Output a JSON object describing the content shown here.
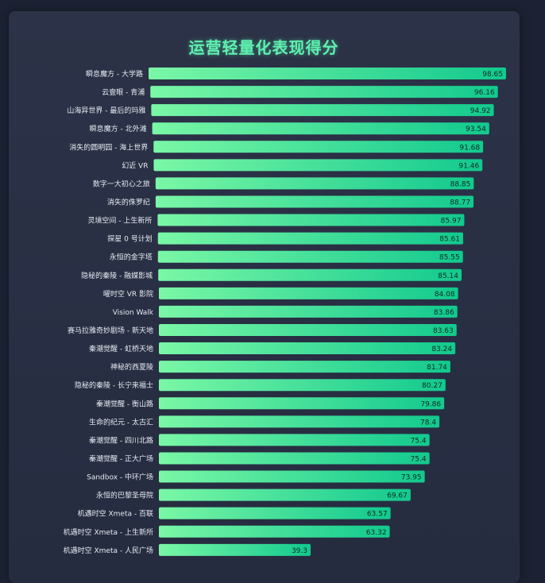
{
  "chart_data": {
    "type": "bar",
    "orientation": "horizontal",
    "title": "运营轻量化表现得分",
    "categories": [
      "瞬息魔方 - 大学路",
      "云壹眼 - 青浦",
      "山海异世界 - 最后的玛雅",
      "瞬息魔方 - 北外滩",
      "消失的圆明园 - 海上世界",
      "幻近 VR",
      "数字一大初心之旅",
      "消失的侏罗纪",
      "灵境空间 - 上生新所",
      "探星 0 号计划",
      "永恒的金字塔",
      "隐秘的秦陵 - 融媒影城",
      "曜时空 VR 影院",
      "Vision Walk",
      "赛马拉雅奇妙剧场 - 新天地",
      "秦潮觉醒 - 虹桥天地",
      "神秘的西夏陵",
      "隐秘的秦陵 - 长宁来福士",
      "秦潮觉醒 - 衡山路",
      "生命的纪元 - 太古汇",
      "秦潮觉醒 - 四川北路",
      "秦潮觉醒 - 正大广场",
      "Sandbox - 中环广场",
      "永恒的巴黎圣母院",
      "机遇时空 Xmeta - 百联",
      "机遇时空 Xmeta - 上生新所",
      "机遇时空 Xmeta - 人民广场"
    ],
    "values": [
      98.65,
      96.16,
      94.92,
      93.54,
      91.68,
      91.46,
      88.85,
      88.77,
      85.97,
      85.61,
      85.55,
      85.14,
      84.08,
      83.86,
      83.63,
      83.24,
      81.74,
      80.27,
      79.86,
      78.4,
      75.4,
      75.4,
      73.95,
      69.67,
      63.57,
      63.32,
      39.3
    ],
    "value_labels": [
      "98.65",
      "96.16",
      "94.92",
      "93.54",
      "91.68",
      "91.46",
      "88.85",
      "88.77",
      "85.97",
      "85.61",
      "85.55",
      "85.14",
      "84.08",
      "83.86",
      "83.63",
      "83.24",
      "81.74",
      "80.27",
      "79.86",
      "78.4",
      "75.4",
      "75.4",
      "73.95",
      "69.67",
      "63.57",
      "63.32",
      "39.3"
    ],
    "xlim": [
      0,
      100
    ],
    "grid": false,
    "legend": "none",
    "colors": {
      "bar_start": "#7af7a6",
      "bar_end": "#12c98e",
      "title": "#5ff0b0",
      "background": "#262c40"
    }
  }
}
